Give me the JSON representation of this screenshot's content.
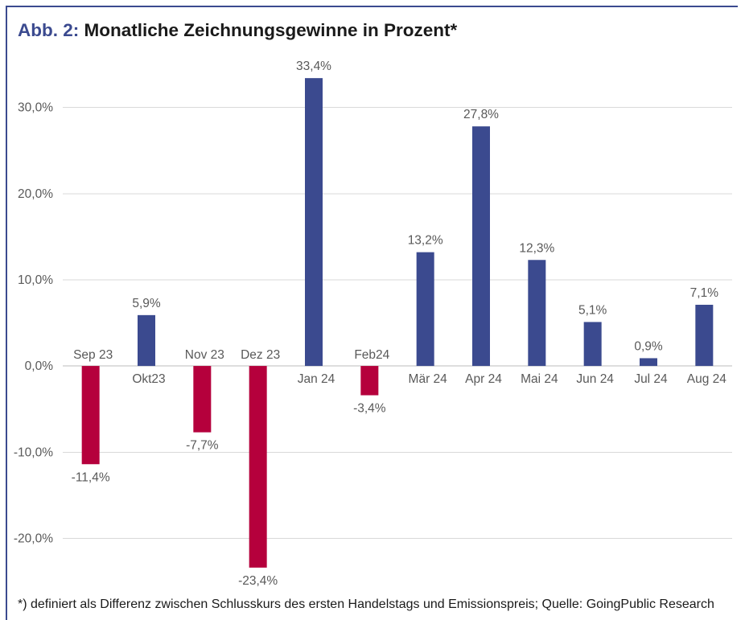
{
  "colors": {
    "accent": "#3b4a8f",
    "positive": "#3b4a8f",
    "negative": "#b5003c",
    "gridline": "#d9d9d9",
    "zero_line": "#bdbdbd"
  },
  "chart_data": {
    "type": "bar",
    "figure_label": "Abb. 2:",
    "title": "Monatliche Zeichnungsgewinne in Prozent*",
    "note": "*) definiert als Differenz zwischen Schlusskurs des ersten Handelstags und Emissionspreis; Quelle: GoingPublic Research",
    "categories": [
      "Sep 23",
      "Okt23",
      "Nov 23",
      "Dez 23",
      "Jan 24",
      "Feb24",
      "Mär 24",
      "Apr 24",
      "Mai 24",
      "Jun 24",
      "Jul 24",
      "Aug 24"
    ],
    "values": [
      -11.4,
      5.9,
      -7.7,
      -23.4,
      33.4,
      -3.4,
      13.2,
      27.8,
      12.3,
      5.1,
      0.9,
      7.1
    ],
    "value_labels": [
      "-11,4%",
      "5,9%",
      "-7,7%",
      "-23,4%",
      "33,4%",
      "-3,4%",
      "13,2%",
      "27,8%",
      "12,3%",
      "5,1%",
      "0,9%",
      "7,1%"
    ],
    "yticks": [
      30,
      20,
      10,
      0,
      -10,
      -20
    ],
    "ytick_labels": [
      "30,0%",
      "20,0%",
      "10,0%",
      "0,0%",
      "-10,0%",
      "-20,0%"
    ],
    "ylim": [
      -25,
      35
    ],
    "grid": true
  }
}
